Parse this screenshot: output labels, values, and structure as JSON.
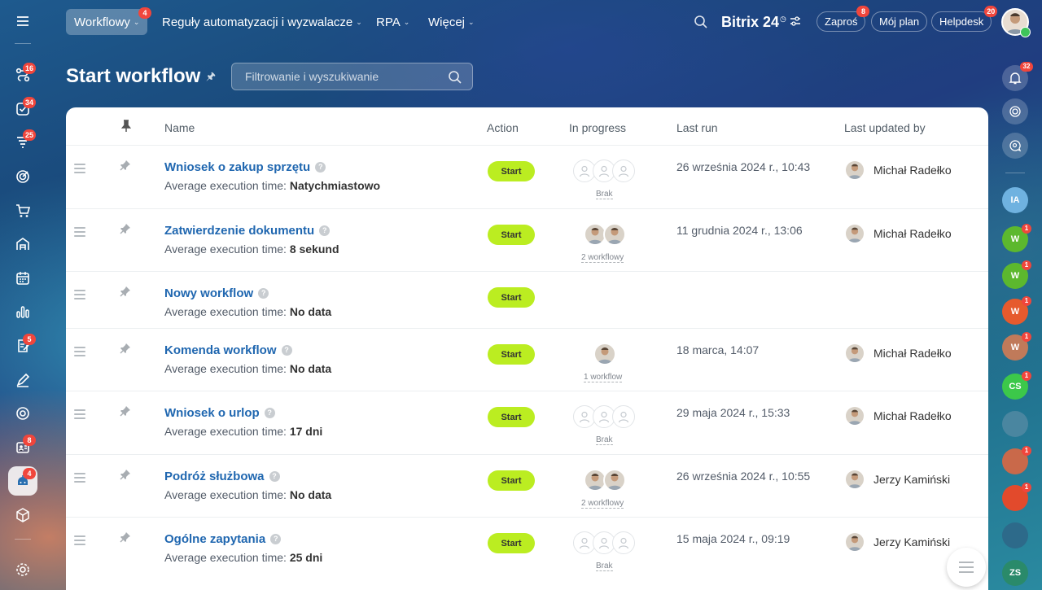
{
  "topbar": {
    "nav": [
      {
        "label": "Workflowy",
        "badge": "4"
      },
      {
        "label": "Reguły automatyzacji i wyzwalacze"
      },
      {
        "label": "RPA"
      },
      {
        "label": "Więcej"
      }
    ],
    "brand": "Bitrix 24",
    "pills": [
      {
        "label": "Zaproś",
        "badge": "8"
      },
      {
        "label": "Mój plan"
      },
      {
        "label": "Helpdesk",
        "badge": "20"
      }
    ]
  },
  "leftbar": {
    "badges": [
      "16",
      "34",
      "25",
      "5",
      "8",
      "4"
    ]
  },
  "page": {
    "title": "Start workflow",
    "search_placeholder": "Filtrowanie i wyszukiwanie"
  },
  "table": {
    "headers": {
      "name": "Name",
      "action": "Action",
      "in_progress": "In progress",
      "last_run": "Last run",
      "last_updated": "Last updated by"
    },
    "avg_prefix": "Average execution time:",
    "start_label": "Start",
    "rows": [
      {
        "name": "Wniosek o zakup sprzętu",
        "avg": "Natychmiastowo",
        "progress": "Brak",
        "progress_avatars": 0,
        "last_run": "26 września 2024 r., 10:43",
        "updated_by": "Michał Radełko"
      },
      {
        "name": "Zatwierdzenie dokumentu",
        "avg": "8 sekund",
        "progress": "2 workflowy",
        "progress_avatars": 2,
        "last_run": "11 grudnia 2024 r., 13:06",
        "updated_by": "Michał Radełko"
      },
      {
        "name": "Nowy workflow",
        "avg": "No data",
        "progress": "",
        "progress_avatars": -1,
        "last_run": "",
        "updated_by": ""
      },
      {
        "name": "Komenda workflow",
        "avg": "No data",
        "progress": "1 workflow",
        "progress_avatars": 1,
        "last_run": "18 marca, 14:07",
        "updated_by": "Michał Radełko"
      },
      {
        "name": "Wniosek o urlop",
        "avg": "17 dni",
        "progress": "Brak",
        "progress_avatars": 0,
        "last_run": "29 maja 2024 r., 15:33",
        "updated_by": "Michał Radełko"
      },
      {
        "name": "Podróż służbowa",
        "avg": "No data",
        "progress": "2 workflowy",
        "progress_avatars": 2,
        "last_run": "26 września 2024 r., 10:55",
        "updated_by": "Jerzy Kamiński"
      },
      {
        "name": "Ogólne zapytania",
        "avg": "25 dni",
        "progress": "Brak",
        "progress_avatars": 0,
        "last_run": "15 maja 2024 r., 09:19",
        "updated_by": "Jerzy Kamiński"
      }
    ]
  },
  "rightbar": {
    "notification_badge": "32",
    "chats": [
      {
        "initials": "IA",
        "color": "#6fb2e0",
        "badge": ""
      },
      {
        "initials": "W",
        "color": "#5cb82e",
        "badge": "1"
      },
      {
        "initials": "W",
        "color": "#5cb82e",
        "badge": "1"
      },
      {
        "initials": "W",
        "color": "#e65a2d",
        "badge": "1"
      },
      {
        "initials": "W",
        "color": "#c07a5a",
        "badge": "1"
      },
      {
        "initials": "CS",
        "color": "#3cc84a",
        "badge": "1"
      },
      {
        "initials": "",
        "color": "#4a86a0",
        "badge": ""
      },
      {
        "initials": "",
        "color": "#c9694a",
        "badge": "1"
      },
      {
        "initials": "",
        "color": "#e24a2c",
        "badge": "1"
      },
      {
        "initials": "",
        "color": "#2d6a8a",
        "badge": ""
      },
      {
        "initials": "ZS",
        "color": "#2a8a6a",
        "badge": ""
      }
    ]
  }
}
